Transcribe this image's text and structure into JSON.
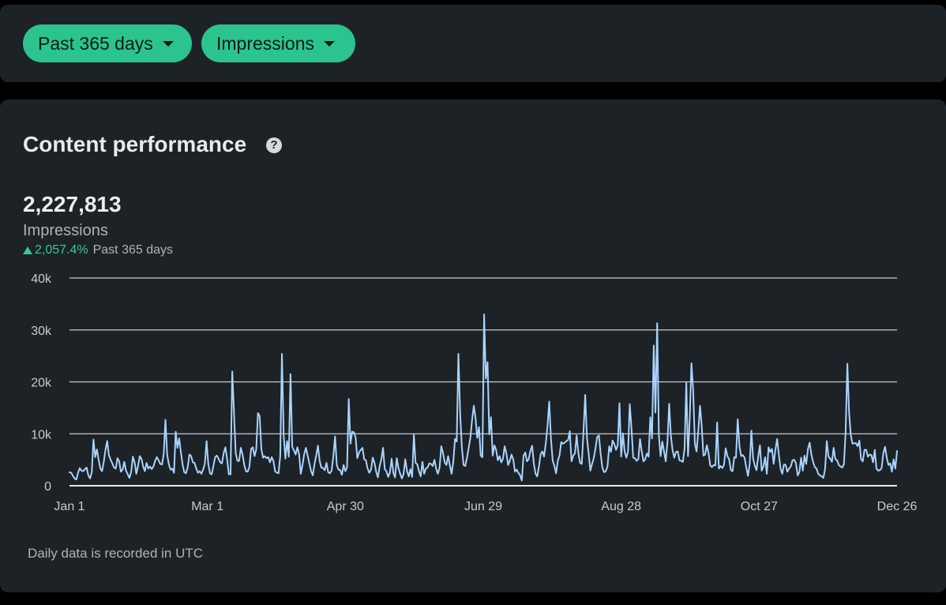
{
  "filters": {
    "range_label": "Past 365 days",
    "metric_label": "Impressions"
  },
  "icons": {
    "help": "question-circle-icon",
    "caret": "caret-down-icon",
    "up": "triangle-up-icon"
  },
  "colors": {
    "accent": "#2bc48f",
    "positive": "#38c793",
    "line": "#a8d4ff",
    "background": "#1d2226"
  },
  "card": {
    "title": "Content performance",
    "help_glyph": "?",
    "total": "2,227,813",
    "metric": "Impressions",
    "change": "2,057.4%",
    "change_period": "Past 365 days",
    "footnote": "Daily data is recorded in UTC"
  },
  "chart_data": {
    "type": "line",
    "x_labels": [
      "Jan 1",
      "Mar 1",
      "Apr 30",
      "Jun 29",
      "Aug 28",
      "Oct 27",
      "Dec 26"
    ],
    "y_tick_labels": [
      "0",
      "10k",
      "20k",
      "30k",
      "40k"
    ],
    "ylim": [
      0,
      40000
    ],
    "grid": true,
    "series": [
      {
        "x_start": "Jan 1",
        "x_end": "Dec 26",
        "values": [
          2600,
          2500,
          1900,
          1400,
          1200,
          2500,
          3400,
          2900,
          2800,
          3200,
          3500,
          2000,
          1400,
          2600,
          8900,
          5500,
          7000,
          5000,
          3300,
          2800,
          4600,
          6900,
          8600,
          5900,
          5000,
          4300,
          3500,
          3300,
          5300,
          4700,
          2700,
          3100,
          4600,
          2900,
          2200,
          1500,
          2700,
          5600,
          4500,
          2300,
          3800,
          5700,
          5200,
          3700,
          2800,
          4400,
          3300,
          3700,
          3200,
          3700,
          4800,
          5500,
          4900,
          4200,
          4100,
          6100,
          12700,
          6000,
          4100,
          3100,
          3300,
          2500,
          10400,
          7300,
          9100,
          6500,
          4100,
          2600,
          2400,
          3600,
          6000,
          5700,
          4500,
          4400,
          3300,
          2500,
          2800,
          2300,
          3100,
          4200,
          8600,
          4200,
          2400,
          2200,
          3800,
          5500,
          5800,
          5200,
          4500,
          4300,
          6300,
          7400,
          5100,
          2200,
          2200,
          22000,
          14200,
          6300,
          4800,
          4800,
          7300,
          6000,
          4000,
          2800,
          2700,
          3600,
          7100,
          7400,
          5700,
          7000,
          14000,
          13400,
          7000,
          5400,
          5700,
          5300,
          5500,
          4500,
          5500,
          4800,
          2800,
          2500,
          2400,
          5700,
          25400,
          9800,
          5200,
          8600,
          5600,
          21500,
          7500,
          6800,
          6000,
          7400,
          6100,
          2300,
          4000,
          6100,
          7300,
          5800,
          4300,
          2800,
          2000,
          4200,
          5800,
          7700,
          4800,
          3500,
          3400,
          3000,
          4400,
          2600,
          2400,
          2900,
          5700,
          9500,
          4000,
          3100,
          3000,
          2100,
          4000,
          2800,
          3500,
          16700,
          8100,
          10400,
          10300,
          9300,
          5300,
          6400,
          6900,
          7300,
          5100,
          4900,
          3300,
          2500,
          3100,
          5400,
          4400,
          2700,
          1600,
          3700,
          5100,
          7300,
          3200,
          2800,
          1700,
          2500,
          5200,
          2500,
          1600,
          5300,
          3400,
          2300,
          1400,
          2300,
          5100,
          2800,
          1800,
          3200,
          1700,
          9800,
          4400,
          4100,
          2800,
          1800,
          4600,
          2300,
          3300,
          3500,
          4300,
          4200,
          3800,
          5000,
          3300,
          2300,
          3500,
          7600,
          6300,
          4500,
          4000,
          5700,
          3900,
          2300,
          4600,
          9000,
          8500,
          25400,
          14000,
          7400,
          4000,
          3800,
          5400,
          7300,
          9300,
          12800,
          15400,
          13000,
          9200,
          11300,
          5800,
          5500,
          33000,
          20600,
          23800,
          9900,
          13200,
          5800,
          7800,
          6900,
          4900,
          5700,
          4500,
          5200,
          7600,
          6200,
          4000,
          4800,
          6000,
          5100,
          2700,
          3100,
          2500,
          2000,
          1000,
          5800,
          6400,
          4700,
          5100,
          6700,
          7700,
          4300,
          2300,
          1800,
          3700,
          6100,
          6600,
          5600,
          8200,
          11500,
          16200,
          9100,
          4900,
          3800,
          2400,
          4800,
          5800,
          8400,
          8100,
          8300,
          8600,
          8800,
          10500,
          4700,
          5800,
          6200,
          9700,
          6300,
          4400,
          4200,
          10500,
          17500,
          9300,
          6200,
          2900,
          4200,
          5300,
          7200,
          9400,
          9700,
          6200,
          3500,
          2600,
          2800,
          3700,
          7600,
          6500,
          8700,
          8000,
          6900,
          7800,
          15900,
          5600,
          10100,
          6600,
          5400,
          6600,
          15700,
          11100,
          5400,
          5300,
          4800,
          5100,
          9000,
          6600,
          4700,
          5100,
          6200,
          5600,
          13200,
          9100,
          27000,
          14100,
          31300,
          9600,
          5700,
          8500,
          6600,
          4700,
          8400,
          15800,
          9600,
          6800,
          5400,
          6500,
          6600,
          4900,
          4800,
          4600,
          7200,
          19900,
          5700,
          12900,
          23600,
          18400,
          8100,
          6600,
          10600,
          15400,
          11500,
          5800,
          6000,
          7800,
          6200,
          3900,
          3600,
          4000,
          3900,
          12200,
          3300,
          3800,
          3400,
          4000,
          7200,
          5700,
          5100,
          3000,
          2800,
          5500,
          5400,
          12800,
          7700,
          5700,
          5900,
          5400,
          3500,
          1900,
          4200,
          10600,
          5200,
          3900,
          3000,
          5700,
          7800,
          2900,
          3700,
          5500,
          2300,
          7400,
          6500,
          7100,
          4200,
          6900,
          9000,
          6000,
          3300,
          2300,
          4100,
          4000,
          2700,
          3300,
          3700,
          4900,
          5000,
          4300,
          2000,
          2600,
          5400,
          2900,
          5800,
          4200,
          7100,
          8300,
          6000,
          4600,
          3600,
          3300,
          2300,
          2000,
          1800,
          1500,
          3200,
          8600,
          5600,
          5200,
          4600,
          7300,
          5100,
          4900,
          4000,
          3700,
          3500,
          4100,
          10400,
          23500,
          14200,
          9700,
          8100,
          8200,
          8200,
          7600,
          8700,
          5100,
          4700,
          6900,
          6900,
          5600,
          6000,
          5900,
          4500,
          6900,
          3300,
          2900,
          3000,
          3400,
          6300,
          7500,
          5400,
          4000,
          4300,
          2700,
          5100,
          3300,
          6700
        ]
      }
    ]
  }
}
